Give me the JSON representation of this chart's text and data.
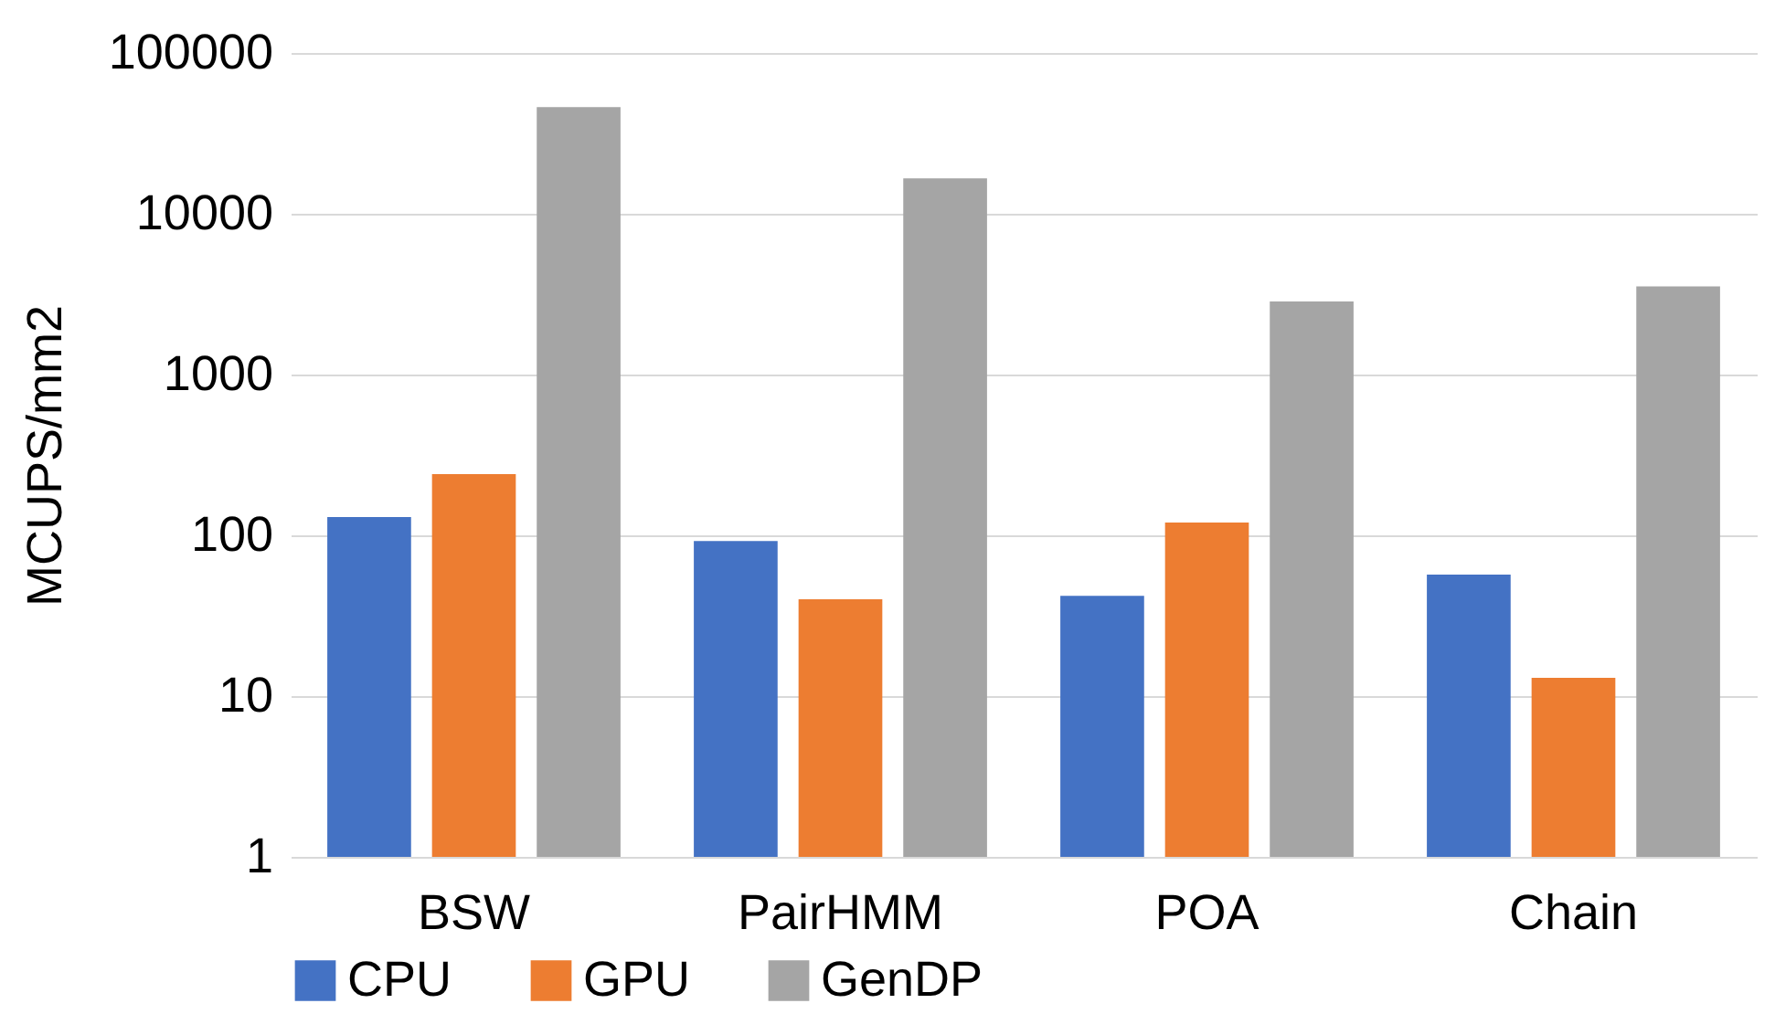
{
  "chart_data": {
    "type": "bar",
    "ylabel": "MCUPS/mm2",
    "categories": [
      "BSW",
      "PairHMM",
      "POA",
      "Chain"
    ],
    "series": [
      {
        "name": "CPU",
        "color": "#4472c4",
        "values": [
          130,
          92,
          42,
          57
        ]
      },
      {
        "name": "GPU",
        "color": "#ed7d31",
        "values": [
          240,
          40,
          120,
          13
        ]
      },
      {
        "name": "GenDP",
        "color": "#a5a5a5",
        "values": [
          46000,
          16600,
          2850,
          3530
        ]
      }
    ],
    "log": "y",
    "ylim": [
      1,
      100000
    ],
    "yticks": [
      1,
      10,
      100,
      1000,
      10000,
      100000
    ],
    "grid": "y",
    "legend": "bottom"
  }
}
